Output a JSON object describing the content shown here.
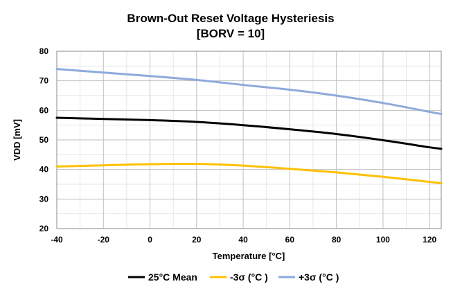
{
  "chart_data": {
    "type": "line",
    "title": "Brown-Out Reset Voltage Hysteriesis",
    "subtitle": "[BORV = 10]",
    "xlabel": "Temperature [°C]",
    "ylabel": "VDD [mV]",
    "xlim": [
      -40,
      125
    ],
    "ylim": [
      20,
      80
    ],
    "x_ticks": [
      -40,
      -20,
      0,
      20,
      40,
      60,
      80,
      100,
      120
    ],
    "y_ticks": [
      20,
      30,
      40,
      50,
      60,
      70,
      80
    ],
    "x_tick_labels": [
      "-40",
      "-20",
      "0",
      "20",
      "40",
      "60",
      "80",
      "100",
      "120"
    ],
    "y_tick_labels": [
      "20",
      "30",
      "40",
      "50",
      "60",
      "70",
      "80"
    ],
    "grid": true,
    "legend_position": "bottom",
    "series": [
      {
        "name": "25°C Mean",
        "color": "#000000",
        "x": [
          -40,
          -20,
          0,
          20,
          40,
          60,
          80,
          100,
          120,
          125
        ],
        "y": [
          57.5,
          57.1,
          56.7,
          56.1,
          55.0,
          53.6,
          52.0,
          49.9,
          47.5,
          47.0
        ]
      },
      {
        "name": "-3σ (°C )",
        "color": "#ffc000",
        "x": [
          -40,
          -20,
          0,
          20,
          40,
          60,
          80,
          100,
          120,
          125
        ],
        "y": [
          41.0,
          41.4,
          41.8,
          41.9,
          41.3,
          40.2,
          39.0,
          37.5,
          35.8,
          35.3
        ]
      },
      {
        "name": "+3σ (°C )",
        "color": "#8eaadb",
        "x": [
          -40,
          -20,
          0,
          20,
          40,
          60,
          80,
          100,
          120,
          125
        ],
        "y": [
          74.0,
          72.8,
          71.6,
          70.3,
          68.6,
          67.0,
          65.0,
          62.5,
          59.5,
          58.8
        ]
      }
    ]
  }
}
